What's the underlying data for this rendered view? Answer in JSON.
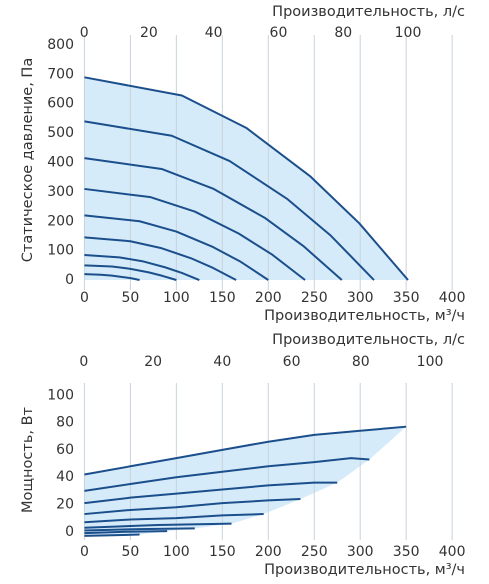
{
  "chart_data": [
    {
      "type": "line",
      "x_label": "Производительность, м³/ч",
      "x2_label": "Производительность, л/с",
      "y_label": "Статическое давление, Па",
      "xlim": [
        -7,
        414
      ],
      "xticks": [
        0,
        50,
        100,
        150,
        200,
        250,
        300,
        350,
        400
      ],
      "x2lim": [
        -1.9,
        117.6
      ],
      "x2ticks": [
        0,
        20,
        40,
        60,
        80,
        100
      ],
      "ylim": [
        -34,
        834
      ],
      "yticks": [
        0,
        100,
        200,
        300,
        400,
        500,
        600,
        700,
        800
      ],
      "grid": "x",
      "color": "#1b4f8c",
      "fill": "#d6ebf9",
      "series": [
        {
          "x": [
            0,
            106,
            176,
            246,
            299,
            352
          ],
          "values": [
            690,
            628,
            518,
            352,
            193,
            0
          ]
        },
        {
          "x": [
            0,
            95,
            158,
            221,
            268,
            315
          ],
          "values": [
            540,
            491,
            405,
            275,
            151,
            0
          ]
        },
        {
          "x": [
            0,
            84,
            140,
            196,
            238,
            280
          ],
          "values": [
            415,
            378,
            311,
            212,
            116,
            0
          ]
        },
        {
          "x": [
            0,
            72,
            120,
            168,
            204,
            240
          ],
          "values": [
            310,
            282,
            233,
            158,
            87,
            0
          ]
        },
        {
          "x": [
            0,
            60,
            100,
            140,
            170,
            200
          ],
          "values": [
            220,
            200,
            165,
            112,
            62,
            0
          ]
        },
        {
          "x": [
            0,
            50,
            83,
            116,
            140,
            165
          ],
          "values": [
            145,
            132,
            109,
            74,
            41,
            0
          ]
        },
        {
          "x": [
            0,
            38,
            63,
            88,
            106,
            125
          ],
          "values": [
            85,
            77,
            64,
            43,
            24,
            0
          ]
        },
        {
          "x": [
            0,
            30,
            50,
            70,
            85,
            100
          ],
          "values": [
            50,
            46,
            38,
            26,
            14,
            0
          ]
        },
        {
          "x": [
            0,
            18,
            30,
            42,
            51,
            60
          ],
          "values": [
            20,
            18,
            15,
            10,
            6,
            0
          ]
        }
      ]
    },
    {
      "type": "line",
      "x_label": "Производительность, м³/ч",
      "x2_label": "Производительность, л/с",
      "y_label": "Мощность, Вт",
      "xlim": [
        -7,
        414
      ],
      "xticks": [
        0,
        50,
        100,
        150,
        200,
        250,
        300,
        350,
        400
      ],
      "x2lim": [
        -1.7,
        110.1
      ],
      "x2ticks": [
        0,
        20,
        40,
        60,
        80,
        100
      ],
      "ylim": [
        -6,
        109
      ],
      "yticks": [
        0,
        20,
        40,
        60,
        80,
        100
      ],
      "grid": "x",
      "color": "#1b4f8c",
      "fill": "#d6ebf9",
      "series": [
        {
          "x": [
            0,
            50,
            100,
            150,
            200,
            250,
            300,
            350
          ],
          "values": [
            42,
            48,
            54,
            60,
            66,
            71,
            74,
            77
          ]
        },
        {
          "x": [
            0,
            50,
            100,
            150,
            200,
            250,
            290,
            310
          ],
          "values": [
            30,
            35,
            40,
            44,
            48,
            51,
            54,
            53
          ]
        },
        {
          "x": [
            0,
            50,
            100,
            150,
            200,
            250,
            275
          ],
          "values": [
            21,
            25,
            28,
            31,
            34,
            36,
            36
          ]
        },
        {
          "x": [
            0,
            50,
            100,
            150,
            200,
            235
          ],
          "values": [
            13,
            16,
            18,
            21,
            23,
            24
          ]
        },
        {
          "x": [
            0,
            50,
            100,
            150,
            195
          ],
          "values": [
            7,
            9,
            10,
            12,
            13
          ]
        },
        {
          "x": [
            0,
            80,
            160
          ],
          "values": [
            3,
            5,
            6
          ]
        },
        {
          "x": [
            0,
            60,
            120
          ],
          "values": [
            1,
            2,
            2.5
          ]
        },
        {
          "x": [
            0,
            45,
            90
          ],
          "values": [
            -1,
            0,
            0.5
          ]
        },
        {
          "x": [
            0,
            30,
            60
          ],
          "values": [
            -3,
            -2.5,
            -2
          ]
        }
      ]
    }
  ]
}
